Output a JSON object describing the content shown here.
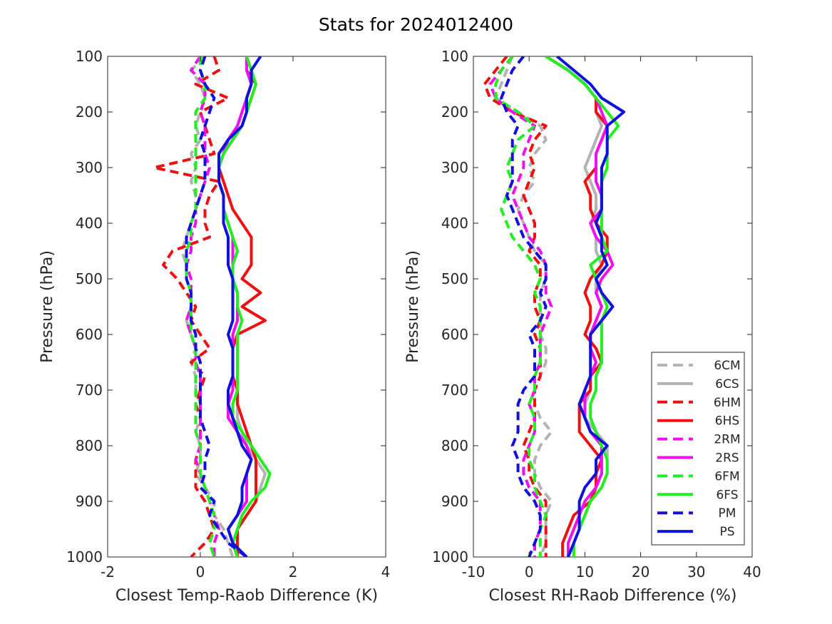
{
  "figure": {
    "title": "Stats for 2024012400"
  },
  "legend": {
    "entries": [
      {
        "name": "6CM",
        "color": "#b3b3b3",
        "dashed": true
      },
      {
        "name": "6CS",
        "color": "#b3b3b3",
        "dashed": false
      },
      {
        "name": "6HM",
        "color": "#ee1111",
        "dashed": true
      },
      {
        "name": "6HS",
        "color": "#ee1111",
        "dashed": false
      },
      {
        "name": "2RM",
        "color": "#ee11ee",
        "dashed": true
      },
      {
        "name": "2RS",
        "color": "#ee11ee",
        "dashed": false
      },
      {
        "name": "6FM",
        "color": "#22ee22",
        "dashed": true
      },
      {
        "name": "6FS",
        "color": "#22ee22",
        "dashed": false
      },
      {
        "name": "PM",
        "color": "#1111dd",
        "dashed": true
      },
      {
        "name": "PS",
        "color": "#1111dd",
        "dashed": false
      }
    ],
    "placement": "lower-right of right panel"
  },
  "chart_data": [
    {
      "type": "line",
      "xlabel": "Closest Temp-Raob Difference (K)",
      "ylabel": "Pressure (hPa)",
      "xlim": [
        -2,
        4
      ],
      "ylim": [
        100,
        1000
      ],
      "y_reversed": true,
      "xticks": [
        -2,
        0,
        2,
        4
      ],
      "yticks": [
        100,
        200,
        300,
        400,
        500,
        600,
        700,
        800,
        900,
        1000
      ],
      "grid": false,
      "pressure": [
        100,
        125,
        150,
        175,
        200,
        225,
        250,
        275,
        300,
        325,
        350,
        375,
        400,
        425,
        450,
        475,
        500,
        525,
        550,
        575,
        600,
        625,
        650,
        675,
        700,
        725,
        750,
        775,
        800,
        825,
        850,
        875,
        900,
        925,
        950,
        975,
        1000
      ],
      "series": [
        {
          "name": "6CM",
          "values": [
            0.1,
            -0.2,
            0.0,
            0.1,
            0.0,
            -0.1,
            0.0,
            -0.2,
            -0.1,
            -0.2,
            -0.1,
            -0.1,
            -0.2,
            -0.3,
            -0.4,
            -0.3,
            -0.3,
            -0.2,
            -0.2,
            -0.3,
            -0.2,
            -0.1,
            -0.2,
            -0.1,
            -0.1,
            0.0,
            0.0,
            -0.1,
            0.0,
            0.0,
            -0.1,
            0.1,
            0.3,
            0.3,
            0.5,
            0.6,
            0.7
          ]
        },
        {
          "name": "6CS",
          "values": [
            1.0,
            1.0,
            1.1,
            1.0,
            0.9,
            0.8,
            0.6,
            0.5,
            0.4,
            0.4,
            0.5,
            0.5,
            0.6,
            0.7,
            0.8,
            0.7,
            0.7,
            0.8,
            0.8,
            0.9,
            0.8,
            0.8,
            0.8,
            0.8,
            0.8,
            0.8,
            0.8,
            0.9,
            1.0,
            1.2,
            1.4,
            1.3,
            1.2,
            1.0,
            0.8,
            0.7,
            0.8
          ]
        },
        {
          "name": "6HM",
          "values": [
            0.3,
            0.4,
            -0.1,
            0.6,
            0.0,
            0.1,
            0.2,
            0.3,
            -1.0,
            0.4,
            0.2,
            0.1,
            0.1,
            0.2,
            -0.6,
            -0.8,
            -0.5,
            -0.3,
            -0.1,
            -0.2,
            0.0,
            0.2,
            -0.2,
            0.1,
            0.0,
            -0.1,
            0.0,
            0.0,
            0.0,
            -0.1,
            -0.1,
            -0.1,
            0.1,
            0.2,
            0.3,
            0.1,
            -0.2
          ]
        },
        {
          "name": "6HS",
          "values": [
            1.0,
            1.0,
            1.2,
            1.1,
            1.0,
            0.9,
            0.7,
            0.5,
            0.4,
            0.5,
            0.6,
            0.7,
            0.9,
            1.1,
            1.1,
            1.1,
            0.9,
            1.3,
            0.9,
            1.4,
            0.8,
            0.7,
            0.7,
            0.7,
            0.8,
            0.8,
            0.9,
            1.0,
            1.1,
            1.2,
            1.2,
            1.2,
            1.2,
            1.0,
            0.8,
            0.8,
            0.8
          ]
        },
        {
          "name": "2RM",
          "values": [
            0.0,
            -0.2,
            0.1,
            0.1,
            0.0,
            0.1,
            0.1,
            0.1,
            0.2,
            0.1,
            0.0,
            -0.1,
            -0.1,
            -0.2,
            -0.2,
            -0.3,
            -0.2,
            -0.2,
            -0.2,
            -0.3,
            -0.2,
            -0.1,
            -0.1,
            0.0,
            0.0,
            0.0,
            0.0,
            0.0,
            0.0,
            -0.1,
            0.0,
            0.1,
            0.2,
            0.3,
            0.4,
            0.3,
            0.3
          ]
        },
        {
          "name": "2RS",
          "values": [
            1.0,
            1.0,
            1.1,
            1.0,
            0.9,
            0.8,
            0.6,
            0.5,
            0.4,
            0.4,
            0.5,
            0.5,
            0.6,
            0.7,
            0.7,
            0.7,
            0.7,
            0.8,
            0.8,
            0.8,
            0.7,
            0.7,
            0.7,
            0.7,
            0.7,
            0.6,
            0.6,
            0.8,
            1.0,
            1.1,
            1.0,
            1.0,
            1.0,
            0.8,
            0.6,
            0.7,
            0.8
          ]
        },
        {
          "name": "6FM",
          "values": [
            0.0,
            0.0,
            0.1,
            0.1,
            -0.1,
            -0.1,
            -0.1,
            -0.1,
            -0.1,
            -0.1,
            -0.1,
            -0.1,
            -0.2,
            -0.2,
            -0.3,
            -0.3,
            -0.3,
            -0.2,
            -0.2,
            -0.2,
            -0.2,
            -0.1,
            -0.1,
            -0.1,
            -0.1,
            -0.1,
            -0.1,
            -0.1,
            0.0,
            0.0,
            0.0,
            0.1,
            0.2,
            0.3,
            0.3,
            0.2,
            0.3
          ]
        },
        {
          "name": "6FS",
          "values": [
            1.0,
            1.1,
            1.2,
            1.1,
            1.0,
            0.9,
            0.7,
            0.5,
            0.4,
            0.4,
            0.5,
            0.5,
            0.6,
            0.7,
            0.8,
            0.7,
            0.7,
            0.8,
            0.8,
            0.9,
            0.8,
            0.8,
            0.8,
            0.8,
            0.8,
            0.7,
            0.7,
            0.9,
            1.1,
            1.3,
            1.5,
            1.4,
            1.1,
            0.9,
            0.8,
            0.7,
            0.8
          ]
        },
        {
          "name": "PM",
          "values": [
            0.1,
            0.0,
            0.1,
            0.3,
            0.2,
            0.1,
            0.0,
            0.1,
            0.1,
            0.1,
            0.0,
            -0.1,
            -0.2,
            -0.3,
            -0.3,
            -0.3,
            -0.3,
            -0.2,
            -0.2,
            -0.2,
            -0.1,
            -0.1,
            0.0,
            0.0,
            0.0,
            0.0,
            0.0,
            0.1,
            0.2,
            0.1,
            0.1,
            0.0,
            0.3,
            0.2,
            0.4,
            0.6,
            1.0
          ]
        },
        {
          "name": "PS",
          "values": [
            1.3,
            1.1,
            1.1,
            1.0,
            1.0,
            0.9,
            0.6,
            0.4,
            0.4,
            0.4,
            0.5,
            0.5,
            0.5,
            0.6,
            0.6,
            0.6,
            0.7,
            0.7,
            0.7,
            0.7,
            0.6,
            0.7,
            0.7,
            0.7,
            0.6,
            0.6,
            0.7,
            0.8,
            0.9,
            1.1,
            1.0,
            0.9,
            0.9,
            0.8,
            0.6,
            0.7,
            1.0
          ]
        }
      ]
    },
    {
      "type": "line",
      "xlabel": "Closest RH-Raob Difference (%)",
      "ylabel": "Pressure (hPa)",
      "xlim": [
        -10,
        40
      ],
      "ylim": [
        100,
        1000
      ],
      "y_reversed": true,
      "xticks": [
        -10,
        0,
        10,
        20,
        30,
        40
      ],
      "yticks": [
        100,
        200,
        300,
        400,
        500,
        600,
        700,
        800,
        900,
        1000
      ],
      "grid": false,
      "pressure": [
        100,
        125,
        150,
        175,
        200,
        225,
        250,
        275,
        300,
        325,
        350,
        375,
        400,
        425,
        450,
        475,
        500,
        525,
        550,
        575,
        600,
        625,
        650,
        675,
        700,
        725,
        750,
        775,
        800,
        825,
        850,
        875,
        900,
        925,
        950,
        975,
        1000
      ],
      "series": [
        {
          "name": "6CM",
          "values": [
            -3,
            -4,
            -5,
            -6,
            -2,
            2,
            3,
            1,
            0,
            1,
            -1,
            -2,
            -1,
            0,
            1,
            3,
            3,
            2,
            2,
            2,
            2,
            3,
            3,
            2,
            1,
            1,
            2,
            4,
            2,
            1,
            1,
            2,
            4,
            3,
            3,
            3,
            2
          ]
        },
        {
          "name": "6CS",
          "values": [
            3,
            7,
            10,
            12,
            12,
            13,
            12,
            11,
            10,
            11,
            12,
            12,
            11,
            12,
            12,
            13,
            12,
            12,
            13,
            12,
            11,
            11,
            12,
            11,
            11,
            10,
            10,
            12,
            14,
            14,
            14,
            13,
            11,
            10,
            9,
            8,
            8
          ]
        },
        {
          "name": "6HM",
          "values": [
            -4,
            -6,
            -8,
            -7,
            -3,
            3,
            1,
            0,
            1,
            0,
            -1,
            0,
            1,
            1,
            0,
            2,
            2,
            1,
            1,
            2,
            1,
            2,
            2,
            2,
            1,
            1,
            1,
            0,
            -1,
            0,
            0,
            1,
            3,
            3,
            3,
            3,
            3
          ]
        },
        {
          "name": "6HS",
          "values": [
            3,
            7,
            10,
            12,
            12,
            14,
            13,
            12,
            12,
            10,
            11,
            11,
            12,
            14,
            14,
            13,
            11,
            10,
            11,
            11,
            10,
            12,
            13,
            11,
            11,
            9,
            9,
            9,
            11,
            13,
            12,
            12,
            11,
            8,
            7,
            6,
            6
          ]
        },
        {
          "name": "2RM",
          "values": [
            -3,
            -5,
            -7,
            -6,
            -3,
            1,
            0,
            -1,
            -1,
            -2,
            -3,
            -2,
            -1,
            0,
            2,
            3,
            3,
            3,
            4,
            3,
            2,
            2,
            2,
            1,
            1,
            0,
            1,
            1,
            0,
            -1,
            -1,
            0,
            2,
            2,
            2,
            1,
            1
          ]
        },
        {
          "name": "2RS",
          "values": [
            3,
            7,
            10,
            12,
            13,
            14,
            13,
            12,
            12,
            12,
            13,
            13,
            11,
            12,
            14,
            15,
            13,
            12,
            13,
            12,
            11,
            11,
            12,
            11,
            10,
            10,
            10,
            11,
            13,
            13,
            13,
            12,
            10,
            9,
            8,
            7,
            7
          ]
        },
        {
          "name": "6FM",
          "values": [
            -3,
            -5,
            -6,
            -6,
            -2,
            1,
            -2,
            -3,
            -4,
            -3,
            -4,
            -5,
            -4,
            -3,
            -1,
            1,
            2,
            1,
            2,
            2,
            2,
            2,
            2,
            1,
            1,
            0,
            1,
            1,
            0,
            0,
            1,
            1,
            2,
            3,
            2,
            2,
            2
          ]
        },
        {
          "name": "6FS",
          "values": [
            3,
            7,
            10,
            12,
            14,
            16,
            14,
            14,
            14,
            13,
            13,
            13,
            13,
            13,
            14,
            11,
            12,
            13,
            14,
            13,
            13,
            13,
            13,
            12,
            12,
            11,
            11,
            12,
            13,
            14,
            14,
            13,
            11,
            10,
            9,
            8,
            8
          ]
        },
        {
          "name": "PM",
          "values": [
            -1,
            -3,
            -4,
            -5,
            -4,
            -2,
            -3,
            -3,
            -3,
            -3,
            -4,
            -3,
            -2,
            -1,
            1,
            3,
            3,
            2,
            3,
            2,
            0,
            1,
            1,
            1,
            -1,
            -2,
            -2,
            -2,
            -3,
            -2,
            -2,
            -1,
            1,
            2,
            2,
            1,
            0
          ]
        },
        {
          "name": "PS",
          "values": [
            5,
            8,
            11,
            13,
            17,
            14,
            14,
            14,
            13,
            13,
            13,
            13,
            12,
            13,
            13,
            14,
            12,
            13,
            15,
            13,
            11,
            11,
            11,
            11,
            10,
            9,
            10,
            11,
            14,
            12,
            12,
            10,
            9,
            9,
            9,
            8,
            7
          ]
        }
      ]
    }
  ]
}
